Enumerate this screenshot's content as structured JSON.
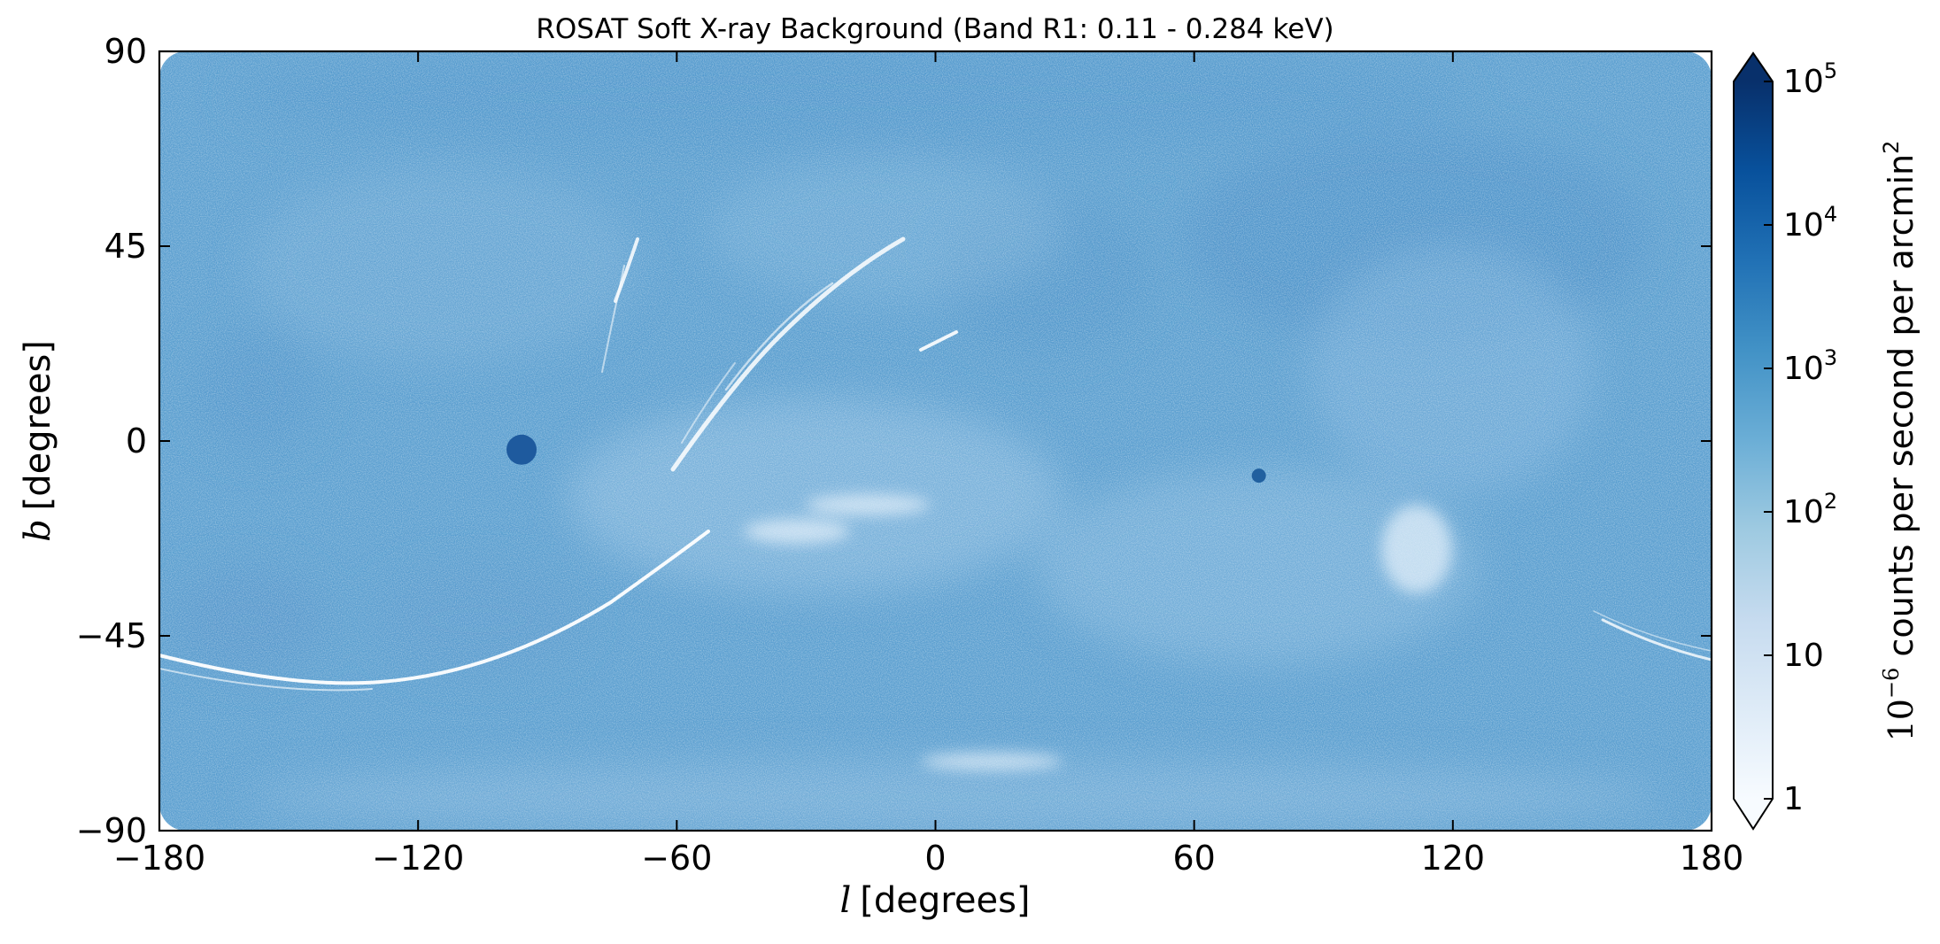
{
  "chart_data": {
    "type": "heatmap",
    "title": "ROSAT Soft X-ray Background (Band R1: 0.11 - 0.284 keV)",
    "xlabel_var": "l",
    "xlabel_unit": "[degrees]",
    "ylabel_var": "b",
    "ylabel_unit": "[degrees]",
    "xlim": [
      -180,
      180
    ],
    "ylim": [
      -90,
      90
    ],
    "xticks": [
      -180,
      -120,
      -60,
      0,
      60,
      120,
      180
    ],
    "xtick_labels": [
      "−180",
      "−120",
      "−60",
      "0",
      "60",
      "120",
      "180"
    ],
    "yticks": [
      90,
      45,
      0,
      -45,
      -90
    ],
    "ytick_labels": [
      "90",
      "45",
      "0",
      "−45",
      "−90"
    ],
    "grid": false,
    "colormap": "Blues",
    "colorbar": {
      "scale": "log",
      "range": [
        1,
        100000
      ],
      "extend": "both",
      "ticks": [
        1,
        10,
        100,
        1000,
        10000,
        100000
      ],
      "tick_labels": [
        {
          "base": "1",
          "exp": ""
        },
        {
          "base": "10",
          "exp": ""
        },
        {
          "base": "10",
          "exp": "2"
        },
        {
          "base": "10",
          "exp": "3"
        },
        {
          "base": "10",
          "exp": "4"
        },
        {
          "base": "10",
          "exp": "5"
        }
      ],
      "label_prefix": "10",
      "label_prefix_exp": "−6",
      "label_main": " counts per second per arcmin",
      "label_suffix_exp": "2"
    },
    "colors": {
      "background_field": "#5b9fd0",
      "colormap_stops": [
        "#f7fbff",
        "#deebf7",
        "#c6dbef",
        "#9ecae1",
        "#6baed6",
        "#4292c6",
        "#2171b5",
        "#08519c",
        "#08306b"
      ]
    },
    "features": [
      {
        "kind": "bright-source",
        "l": -96,
        "b": -2,
        "color": "#1e5a9e"
      },
      {
        "kind": "bright-source",
        "l": 75,
        "b": -8,
        "color": "#21609f"
      }
    ]
  }
}
